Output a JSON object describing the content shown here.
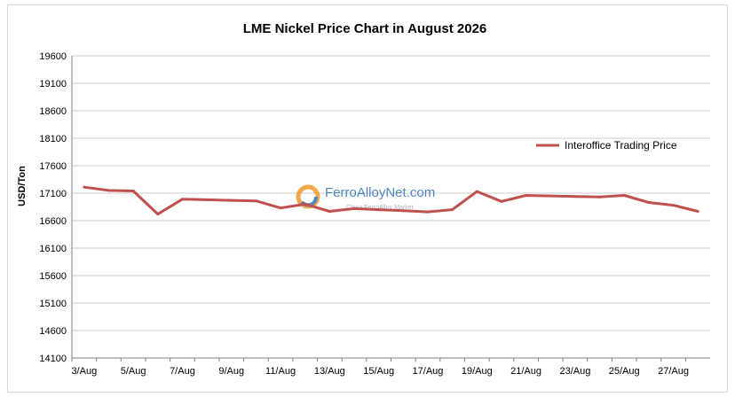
{
  "chart_data": {
    "type": "line",
    "title": "LME Nickel Price Chart in August 2026",
    "ylabel": "USD/Ton",
    "xlabel": "",
    "ylim": [
      14100,
      19600
    ],
    "yticks": [
      14100,
      14600,
      15100,
      15600,
      16100,
      16600,
      17100,
      17600,
      18100,
      18600,
      19100,
      19600
    ],
    "grid": true,
    "legend_position": "right",
    "x": [
      "3/Aug",
      "4/Aug",
      "5/Aug",
      "6/Aug",
      "7/Aug",
      "8/Aug",
      "9/Aug",
      "10/Aug",
      "11/Aug",
      "12/Aug",
      "13/Aug",
      "14/Aug",
      "15/Aug",
      "16/Aug",
      "17/Aug",
      "18/Aug",
      "19/Aug",
      "20/Aug",
      "21/Aug",
      "22/Aug",
      "23/Aug",
      "24/Aug",
      "25/Aug",
      "26/Aug",
      "27/Aug",
      "28/Aug"
    ],
    "xtick_labels": [
      "3/Aug",
      "5/Aug",
      "7/Aug",
      "9/Aug",
      "11/Aug",
      "13/Aug",
      "15/Aug",
      "17/Aug",
      "19/Aug",
      "21/Aug",
      "23/Aug",
      "25/Aug",
      "27/Aug"
    ],
    "series": [
      {
        "name": "Interoffice Trading Price",
        "color": "#c0504d",
        "values": [
          17210,
          17150,
          17140,
          16720,
          16990,
          16980,
          16970,
          16960,
          16830,
          16900,
          16770,
          16820,
          16800,
          16780,
          16760,
          16800,
          17130,
          16950,
          17060,
          17050,
          17040,
          17030,
          17060,
          16930,
          16880,
          16770
        ]
      }
    ]
  },
  "watermark": {
    "name": "FerroAlloyNet.com",
    "sub": "China FerroAlloy Market"
  }
}
